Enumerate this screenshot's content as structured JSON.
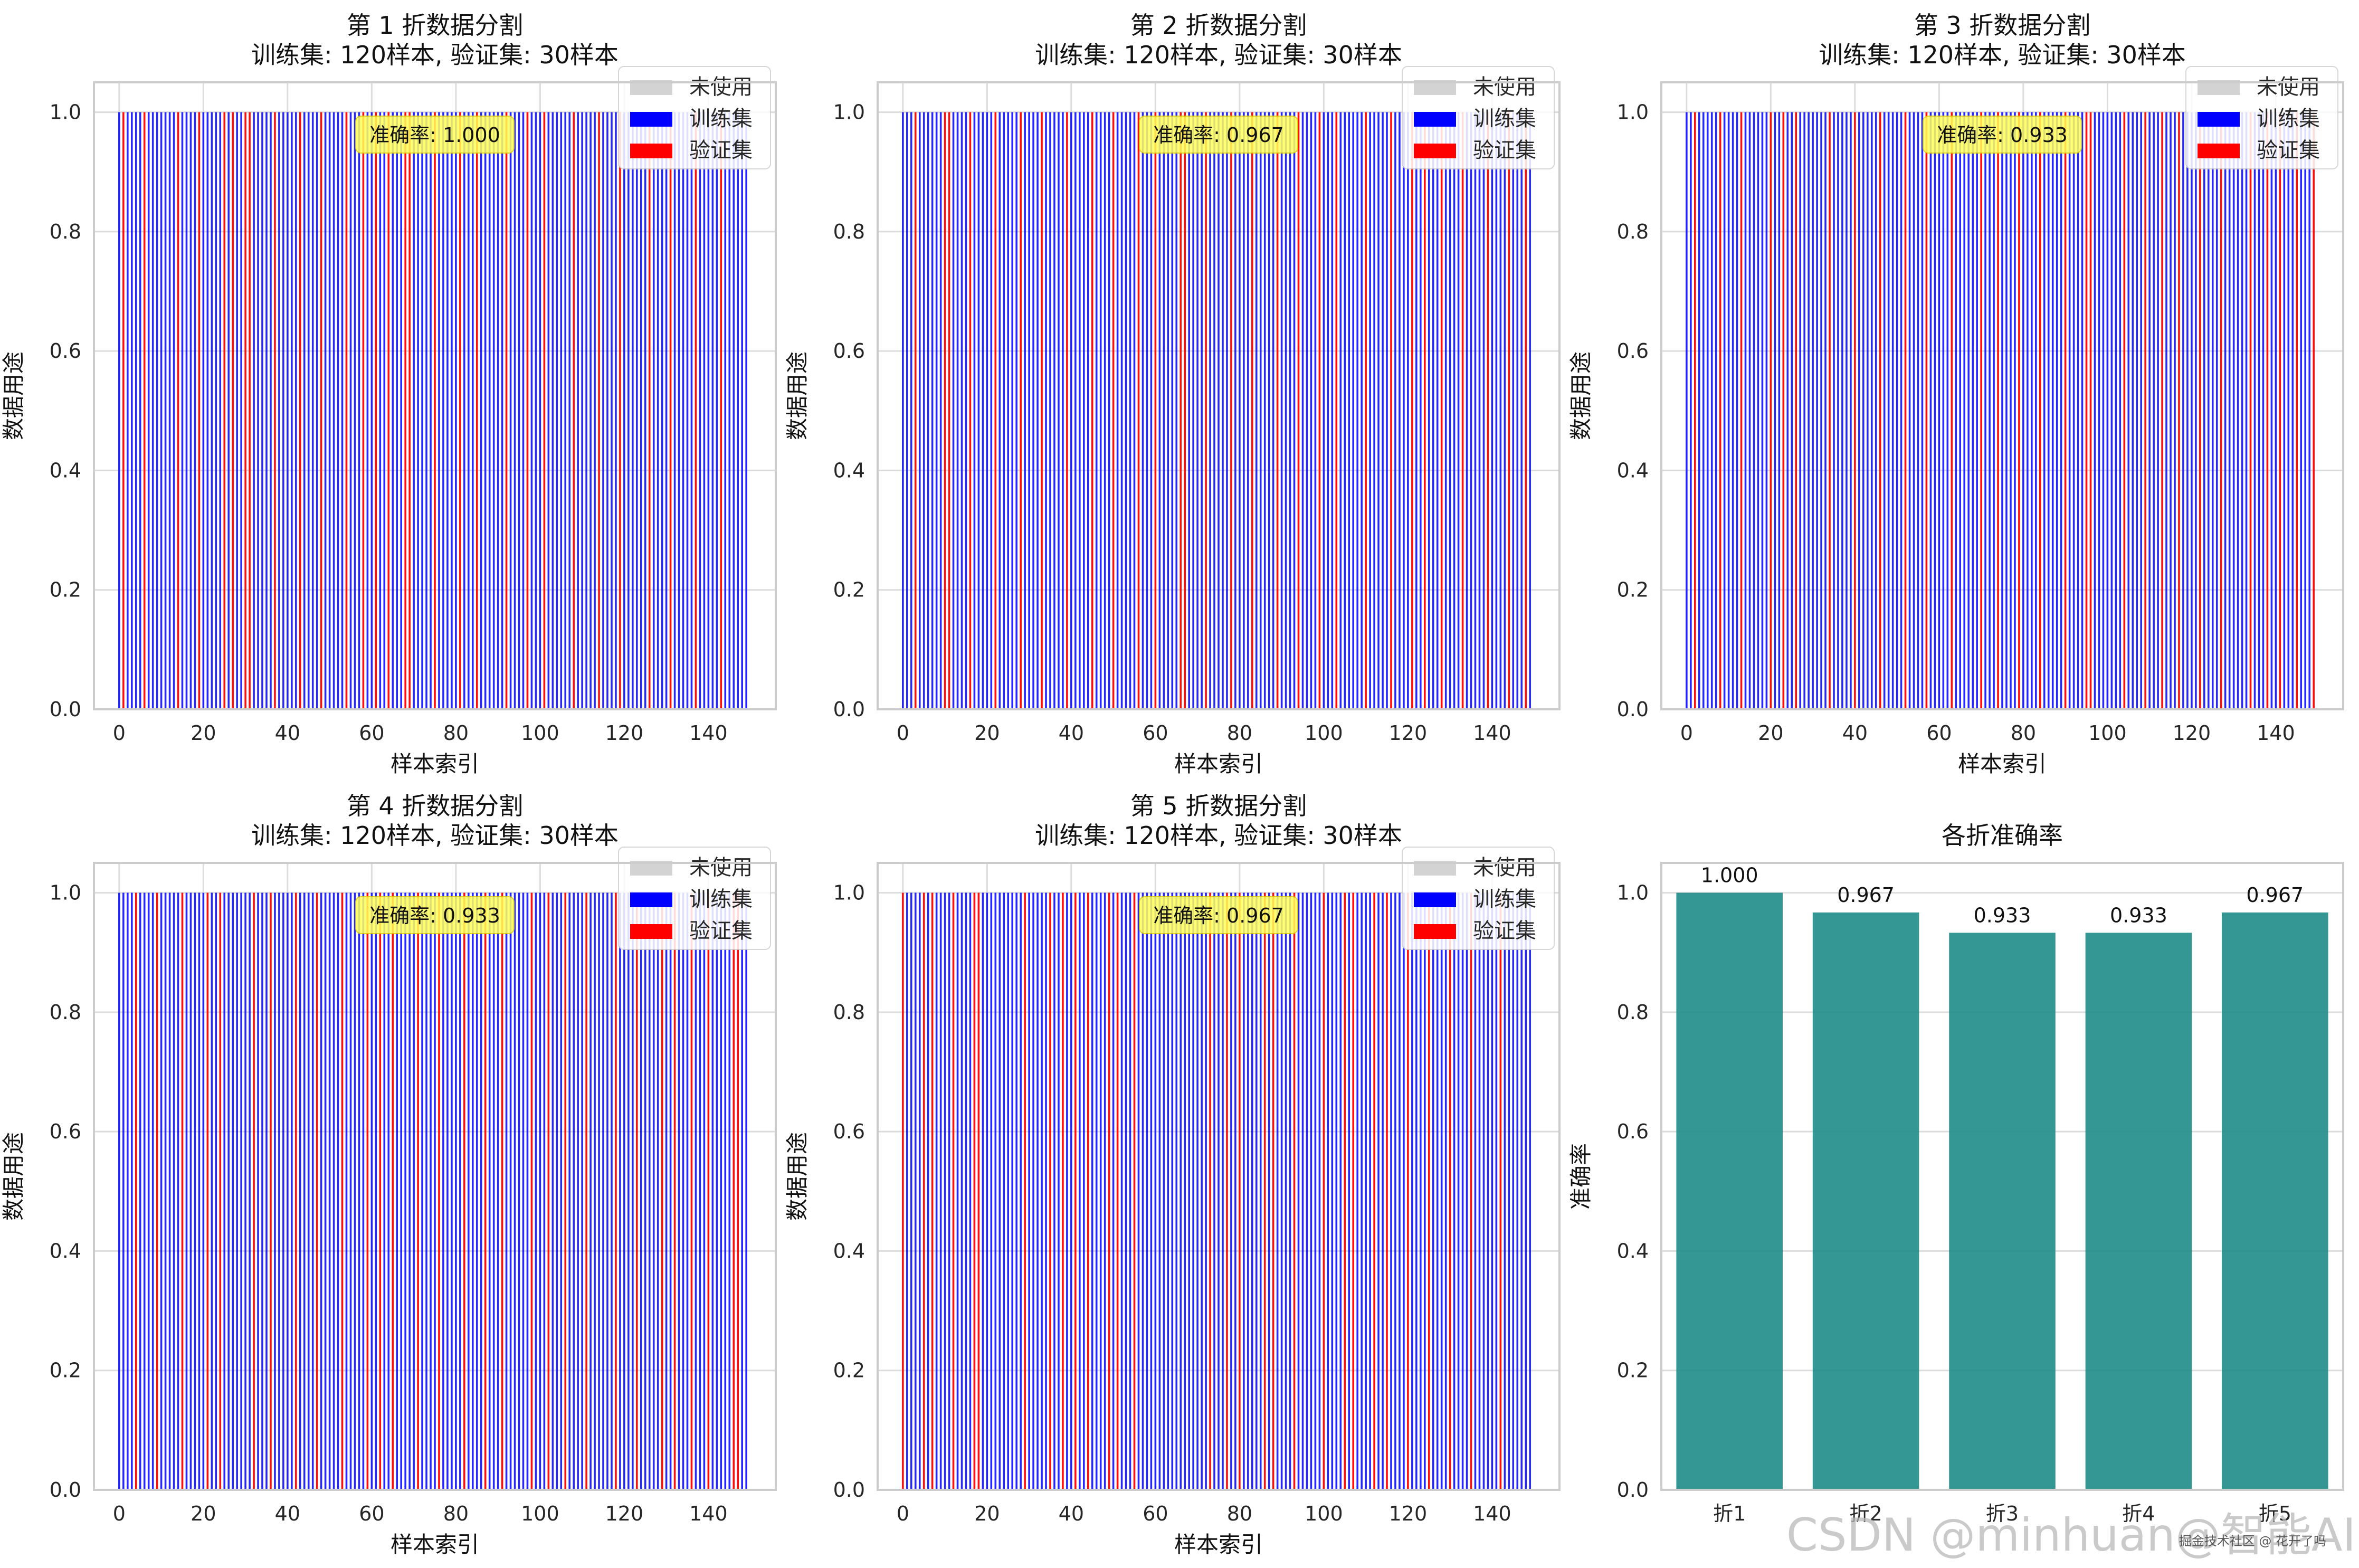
{
  "colors": {
    "unused": "#d3d3d3",
    "train": "#0000ff",
    "val": "#ff0000",
    "accuracy_bar": "#1f8c87",
    "acc_box": "#ffff5a",
    "grid": "#dcdcdc",
    "spine": "#cccccc"
  },
  "watermark": "CSDN @minhuan@智能AI",
  "watermark_small": "掘金技术社区 @ 花开了吗",
  "chart_data": [
    {
      "type": "bar",
      "title_line1": "第 1 折数据分割",
      "title_line2": "训练集: 120样本, 验证集: 30样本",
      "xlabel": "样本索引",
      "ylabel": "数据用途",
      "xlim": [
        -6,
        156
      ],
      "ylim": [
        0,
        1.05
      ],
      "xticks": [
        0,
        20,
        40,
        60,
        80,
        100,
        120,
        140
      ],
      "yticks": [
        0.0,
        0.2,
        0.4,
        0.6,
        0.8,
        1.0
      ],
      "n_samples": 150,
      "value": 1.0,
      "val_indices": [
        1,
        6,
        14,
        19,
        25,
        27,
        30,
        31,
        37,
        43,
        48,
        54,
        58,
        61,
        64,
        68,
        69,
        75,
        81,
        85,
        92,
        97,
        101,
        108,
        114,
        119,
        126,
        131,
        137,
        143
      ],
      "legend": [
        "未使用",
        "训练集",
        "验证集"
      ],
      "accuracy_label": "准确率: 1.000"
    },
    {
      "type": "bar",
      "title_line1": "第 2 折数据分割",
      "title_line2": "训练集: 120样本, 验证集: 30样本",
      "xlabel": "样本索引",
      "ylabel": "数据用途",
      "xlim": [
        -6,
        156
      ],
      "ylim": [
        0,
        1.05
      ],
      "xticks": [
        0,
        20,
        40,
        60,
        80,
        100,
        120,
        140
      ],
      "yticks": [
        0.0,
        0.2,
        0.4,
        0.6,
        0.8,
        1.0
      ],
      "n_samples": 150,
      "value": 1.0,
      "val_indices": [
        3,
        10,
        11,
        16,
        22,
        28,
        33,
        39,
        45,
        50,
        56,
        60,
        66,
        67,
        72,
        78,
        83,
        89,
        94,
        99,
        103,
        110,
        116,
        121,
        124,
        128,
        133,
        139,
        144,
        148
      ],
      "legend": [
        "未使用",
        "训练集",
        "验证集"
      ],
      "accuracy_label": "准确率: 0.967"
    },
    {
      "type": "bar",
      "title_line1": "第 3 折数据分割",
      "title_line2": "训练集: 120样本, 验证集: 30样本",
      "xlabel": "样本索引",
      "ylabel": "数据用途",
      "xlim": [
        -6,
        156
      ],
      "ylim": [
        0,
        1.05
      ],
      "xticks": [
        0,
        20,
        40,
        60,
        80,
        100,
        120,
        140
      ],
      "yticks": [
        0.0,
        0.2,
        0.4,
        0.6,
        0.8,
        1.0
      ],
      "n_samples": 150,
      "value": 1.0,
      "val_indices": [
        2,
        8,
        13,
        20,
        23,
        26,
        34,
        40,
        46,
        52,
        57,
        63,
        70,
        74,
        79,
        84,
        90,
        95,
        96,
        104,
        109,
        113,
        117,
        122,
        127,
        134,
        138,
        141,
        145,
        149
      ],
      "legend": [
        "未使用",
        "训练集",
        "验证集"
      ],
      "accuracy_label": "准确率: 0.933"
    },
    {
      "type": "bar",
      "title_line1": "第 4 折数据分割",
      "title_line2": "训练集: 120样本, 验证集: 30样本",
      "xlabel": "样本索引",
      "ylabel": "数据用途",
      "xlim": [
        -6,
        156
      ],
      "ylim": [
        0,
        1.05
      ],
      "xticks": [
        0,
        20,
        40,
        60,
        80,
        100,
        120,
        140
      ],
      "yticks": [
        0.0,
        0.2,
        0.4,
        0.6,
        0.8,
        1.0
      ],
      "n_samples": 150,
      "value": 1.0,
      "val_indices": [
        4,
        9,
        15,
        21,
        24,
        32,
        36,
        42,
        47,
        53,
        59,
        62,
        65,
        71,
        76,
        82,
        87,
        91,
        98,
        102,
        106,
        111,
        118,
        123,
        129,
        132,
        136,
        140,
        146,
        147
      ],
      "legend": [
        "未使用",
        "训练集",
        "验证集"
      ],
      "accuracy_label": "准确率: 0.933"
    },
    {
      "type": "bar",
      "title_line1": "第 5 折数据分割",
      "title_line2": "训练集: 120样本, 验证集: 30样本",
      "xlabel": "样本索引",
      "ylabel": "数据用途",
      "xlim": [
        -6,
        156
      ],
      "ylim": [
        0,
        1.05
      ],
      "xticks": [
        0,
        20,
        40,
        60,
        80,
        100,
        120,
        140
      ],
      "yticks": [
        0.0,
        0.2,
        0.4,
        0.6,
        0.8,
        1.0
      ],
      "n_samples": 150,
      "value": 1.0,
      "val_indices": [
        0,
        5,
        7,
        12,
        17,
        18,
        29,
        35,
        38,
        41,
        44,
        49,
        51,
        55,
        73,
        77,
        80,
        86,
        88,
        93,
        100,
        105,
        107,
        112,
        115,
        120,
        125,
        130,
        135,
        142
      ],
      "legend": [
        "未使用",
        "训练集",
        "验证集"
      ],
      "accuracy_label": "准确率: 0.967"
    },
    {
      "type": "bar",
      "title": "各折准确率",
      "xlabel": "",
      "ylabel": "准确率",
      "categories": [
        "折1",
        "折2",
        "折3",
        "折4",
        "折5"
      ],
      "values": [
        1.0,
        0.967,
        0.933,
        0.933,
        0.967
      ],
      "data_labels": [
        "1.000",
        "0.967",
        "0.933",
        "0.933",
        "0.967"
      ],
      "ylim": [
        0,
        1.05
      ],
      "yticks": [
        0.0,
        0.2,
        0.4,
        0.6,
        0.8,
        1.0
      ]
    }
  ]
}
